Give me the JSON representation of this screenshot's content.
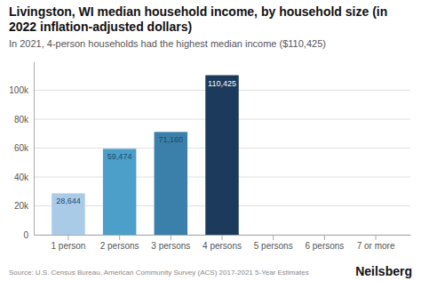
{
  "chart_data": {
    "type": "bar",
    "title": "Livingston, WI median household income, by household size (in 2022 inflation-adjusted dollars)",
    "subtitle": "In 2021, 4-person households had the highest median income ($110,425)",
    "categories": [
      "1 person",
      "2 persons",
      "3 persons",
      "4 persons",
      "5 persons",
      "6 persons",
      "7 or more"
    ],
    "values": [
      28644,
      59474,
      71160,
      110425,
      0,
      0,
      0
    ],
    "value_labels": [
      "28,644",
      "59,474",
      "71,160",
      "110,425",
      null,
      null,
      null
    ],
    "colors": [
      "#aacbe8",
      "#4c9fc8",
      "#3a80aa",
      "#1b3a5c",
      "#cccccc",
      "#cccccc",
      "#cccccc"
    ],
    "ylim": [
      0,
      120000
    ],
    "yticks": [
      0,
      {
        "value": 20000,
        "label": "20k"
      },
      {
        "value": 40000,
        "label": "40k"
      },
      {
        "value": 60000,
        "label": "60k"
      },
      {
        "value": 80000,
        "label": "80k"
      },
      {
        "value": 100000,
        "label": "100k"
      }
    ],
    "grid": true,
    "data_labels": true,
    "annotations": [
      "Source: U.S. Census Bureau, American Community Survey (ACS) 2017-2021 5-Year Estimates",
      "Neilsberg"
    ]
  }
}
